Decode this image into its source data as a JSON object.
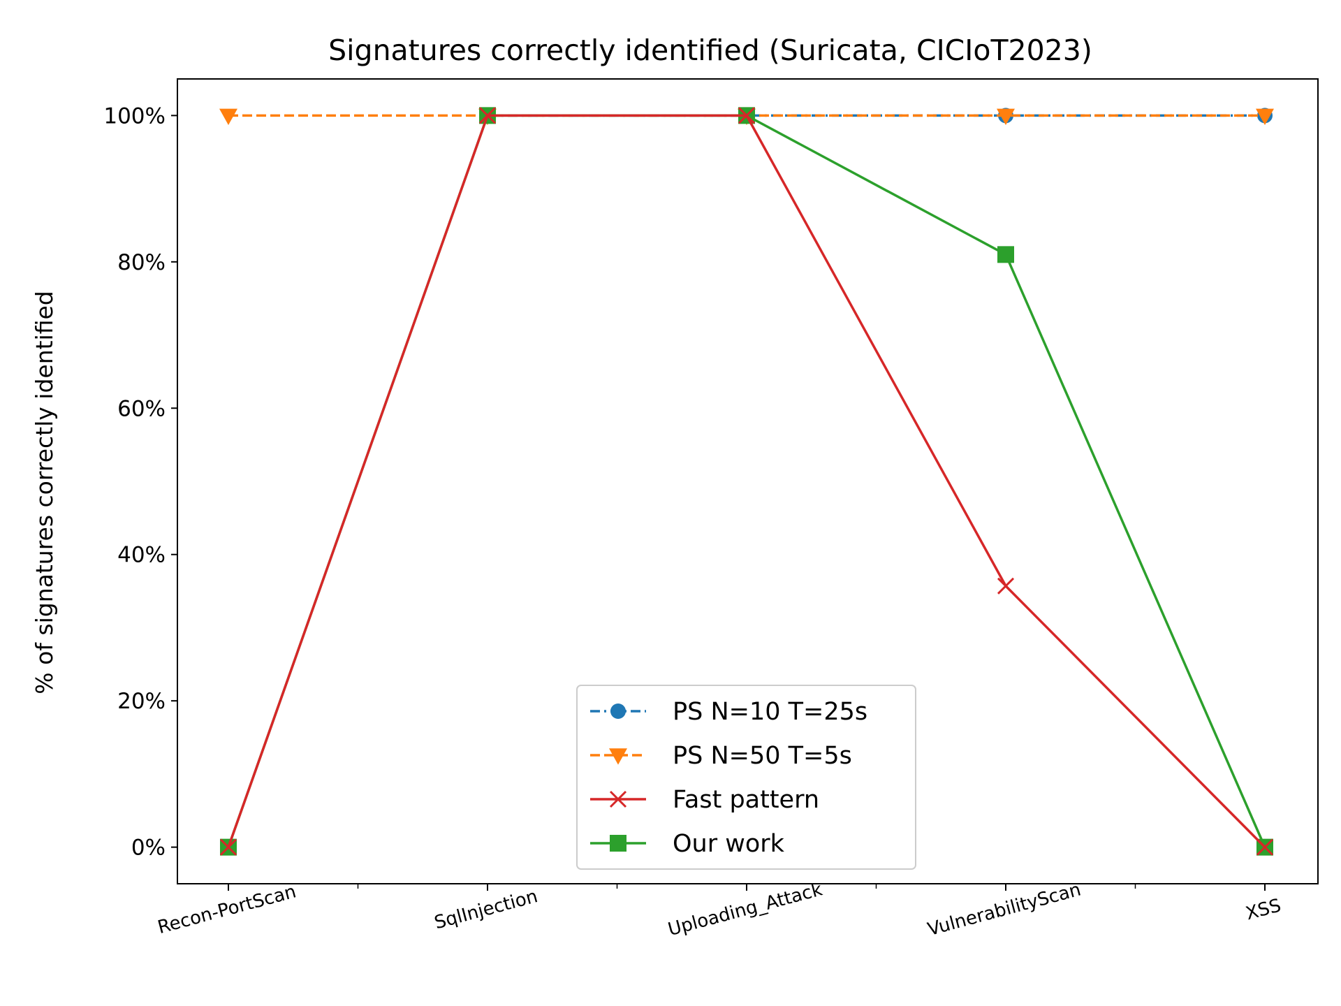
{
  "chart_data": {
    "type": "line",
    "title": "Signatures correctly identified (Suricata, CICIoT2023)",
    "xlabel": "",
    "ylabel": "% of signatures correctly identified",
    "categories": [
      "Recon-PortScan",
      "SqlInjection",
      "Uploading_Attack",
      "VulnerabilityScan",
      "XSS"
    ],
    "ylim": [
      -5,
      105
    ],
    "yticks": [
      0,
      20,
      40,
      60,
      80,
      100
    ],
    "ytick_labels": [
      "0%",
      "20%",
      "40%",
      "60%",
      "80%",
      "100%"
    ],
    "minor_x_ticks": true,
    "grid": false,
    "legend_position": "lower-center",
    "series": [
      {
        "name": "PS N=10 T=25s",
        "values": [
          null,
          100,
          100,
          100,
          100
        ],
        "color": "#1f77b4",
        "linestyle": "dash-dot",
        "marker": "circle"
      },
      {
        "name": "PS N=50 T=5s",
        "values": [
          100,
          100,
          100,
          100,
          100
        ],
        "color": "#ff7f0e",
        "linestyle": "dashed",
        "marker": "triangle-down"
      },
      {
        "name": "Fast pattern",
        "values": [
          0,
          100,
          100,
          35.7,
          0
        ],
        "color": "#d62728",
        "linestyle": "solid",
        "marker": "x"
      },
      {
        "name": "Our work",
        "values": [
          0,
          100,
          100,
          81,
          0
        ],
        "color": "#2ca02c",
        "linestyle": "solid",
        "marker": "square"
      }
    ]
  }
}
